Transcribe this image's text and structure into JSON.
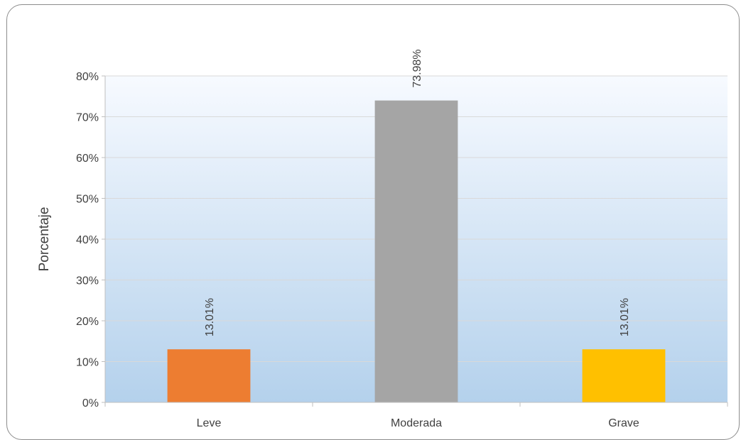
{
  "chart_data": {
    "type": "bar",
    "categories": [
      "Leve",
      "Moderada",
      "Grave"
    ],
    "values": [
      13.01,
      73.98,
      13.01
    ],
    "data_labels": [
      "13.01%",
      "73.98%",
      "13.01%"
    ],
    "colors": [
      "#ED7D31",
      "#A5A5A5",
      "#FFC000"
    ],
    "ylabel": "Porcentaje",
    "ylim": [
      0,
      80
    ],
    "yticks": [
      0,
      10,
      20,
      30,
      40,
      50,
      60,
      70,
      80
    ],
    "ytick_labels": [
      "0%",
      "10%",
      "20%",
      "30%",
      "40%",
      "50%",
      "60%",
      "70%",
      "80%"
    ],
    "grid": true,
    "legend": "none"
  }
}
